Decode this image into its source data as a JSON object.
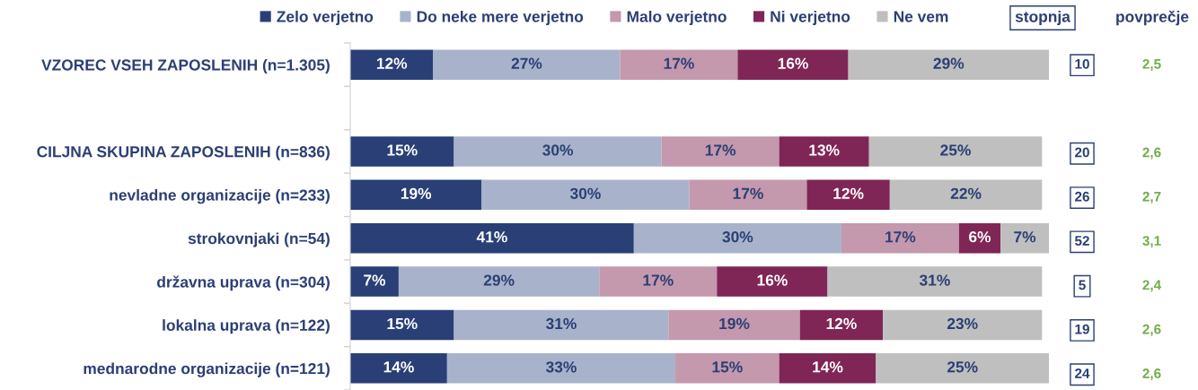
{
  "chart_data": [
    {
      "type": "bar",
      "orientation": "horizontal",
      "stacked": true,
      "legend": "top",
      "tick_labels": "y",
      "xlim": [
        0,
        101
      ],
      "categories": [
        "VZOREC VSEH ZAPOSLENIH (n=1.305)",
        null,
        "CILJNA SKUPINA ZAPOSLENIH (n=836)",
        "nevladne organizacije (n=233)",
        "strokovnjaki (n=54)",
        "državna uprava (n=304)",
        "lokalna uprava (n=122)",
        "mednarodne organizacije (n=121)"
      ],
      "series": [
        {
          "name": "Zelo verjetno",
          "color": "#293f76",
          "values": [
            12,
            null,
            15,
            19,
            41,
            7,
            15,
            14
          ],
          "value_labels": [
            "12%",
            null,
            "15%",
            "19%",
            "41%",
            "7%",
            "15%",
            "14%"
          ]
        },
        {
          "name": "Do neke mere verjetno",
          "color": "#a8b3cb",
          "values": [
            27,
            null,
            30,
            30,
            30,
            29,
            31,
            33
          ],
          "value_labels": [
            "27%",
            null,
            "30%",
            "30%",
            "30%",
            "29%",
            "31%",
            "33%"
          ]
        },
        {
          "name": "Malo verjetno",
          "color": "#c498ad",
          "values": [
            17,
            null,
            17,
            17,
            17,
            17,
            19,
            15
          ],
          "value_labels": [
            "17%",
            null,
            "17%",
            "17%",
            "17%",
            "17%",
            "19%",
            "15%"
          ]
        },
        {
          "name": "Ni verjetno",
          "color": "#7f2657",
          "values": [
            16,
            null,
            13,
            12,
            6,
            16,
            12,
            14
          ],
          "value_labels": [
            "16%",
            null,
            "13%",
            "12%",
            "6%",
            "16%",
            "12%",
            "14%"
          ]
        },
        {
          "name": "Ne vem",
          "color": "#bfbfbf",
          "values": [
            29,
            null,
            25,
            22,
            7,
            31,
            23,
            25
          ],
          "value_labels": [
            "29%",
            null,
            "25%",
            "22%",
            "7%",
            "31%",
            "23%",
            "25%"
          ]
        }
      ]
    },
    {
      "type": "other",
      "title": "stopnja",
      "color": "#2b3f75",
      "categories": [
        null,
        null,
        null,
        null,
        null,
        null,
        null,
        null
      ],
      "values": [
        10,
        null,
        20,
        26,
        52,
        5,
        19,
        24
      ],
      "data_labels": true
    },
    {
      "type": "other",
      "title": "povprečje",
      "color": "#70ad47",
      "categories": [
        null,
        null,
        null,
        null,
        null,
        null,
        null,
        null
      ],
      "values": [
        2.5,
        null,
        2.6,
        2.7,
        3.1,
        2.4,
        2.6,
        2.6
      ],
      "value_labels": [
        "2,5",
        null,
        "2,6",
        "2,7",
        "3,1",
        "2,4",
        "2,6",
        "2,6"
      ]
    }
  ]
}
